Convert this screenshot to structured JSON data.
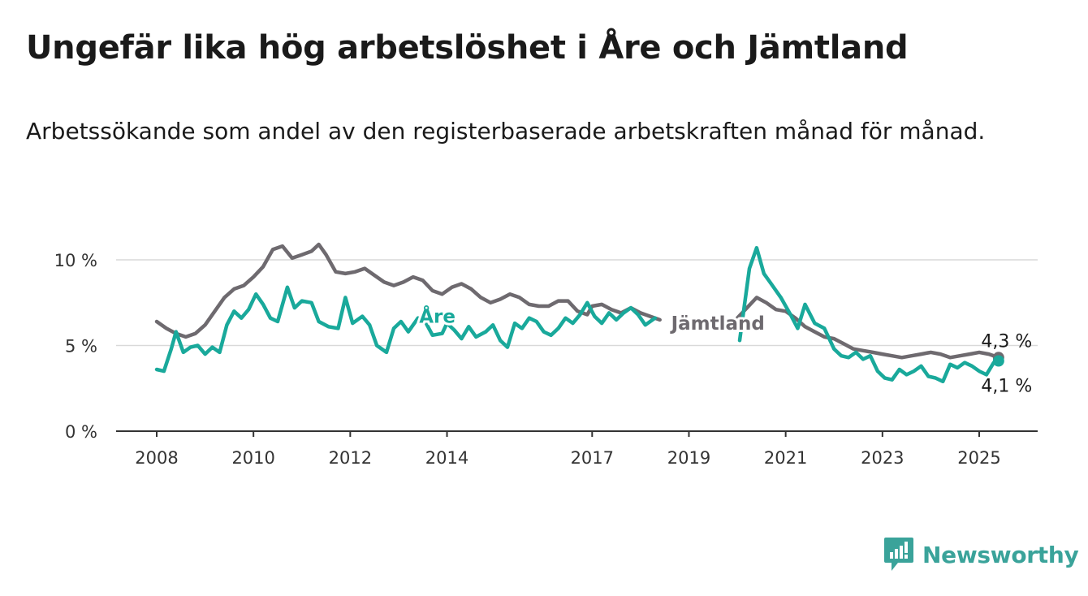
{
  "title": "Ungefär lika hög arbetslöshet i Åre och Jämtland",
  "subtitle": "Arbetssökande som andel av den registerbaserade arbetskraften månad för månad.",
  "brand": {
    "name": "Newsworthy",
    "icon": "newsworthy-logo-icon",
    "color": "#3aa39a"
  },
  "chart_data": {
    "type": "line",
    "title": "Ungefär lika hög arbetslöshet i Åre och Jämtland",
    "subtitle": "Arbetssökande som andel av den registerbaserade arbetskraften månad för månad.",
    "xlabel": "",
    "ylabel": "",
    "ylim": [
      0,
      11
    ],
    "xlim": [
      2007.8,
      2026.2
    ],
    "x_ticks": [
      2008,
      2010,
      2012,
      2014,
      2017,
      2019,
      2021,
      2023,
      2025
    ],
    "x_tick_labels": [
      "2008",
      "2010",
      "2012",
      "2014",
      "2017",
      "2019",
      "2021",
      "2023",
      "2025"
    ],
    "y_ticks": [
      0,
      5,
      10
    ],
    "y_tick_labels": [
      "0 %",
      "5 %",
      "10 %"
    ],
    "grid": "horizontal",
    "series": [
      {
        "name": "Jämtland",
        "color": "#6e6a6f",
        "end_label": "4,3 %",
        "points": [
          [
            2008.0,
            6.4
          ],
          [
            2008.2,
            6.0
          ],
          [
            2008.4,
            5.7
          ],
          [
            2008.6,
            5.5
          ],
          [
            2008.8,
            5.7
          ],
          [
            2009.0,
            6.2
          ],
          [
            2009.2,
            7.0
          ],
          [
            2009.4,
            7.8
          ],
          [
            2009.6,
            8.3
          ],
          [
            2009.8,
            8.5
          ],
          [
            2010.0,
            9.0
          ],
          [
            2010.2,
            9.6
          ],
          [
            2010.4,
            10.6
          ],
          [
            2010.6,
            10.8
          ],
          [
            2010.8,
            10.1
          ],
          [
            2011.0,
            10.3
          ],
          [
            2011.2,
            10.5
          ],
          [
            2011.35,
            10.9
          ],
          [
            2011.5,
            10.3
          ],
          [
            2011.7,
            9.3
          ],
          [
            2011.9,
            9.2
          ],
          [
            2012.1,
            9.3
          ],
          [
            2012.3,
            9.5
          ],
          [
            2012.5,
            9.1
          ],
          [
            2012.7,
            8.7
          ],
          [
            2012.9,
            8.5
          ],
          [
            2013.1,
            8.7
          ],
          [
            2013.3,
            9.0
          ],
          [
            2013.5,
            8.8
          ],
          [
            2013.7,
            8.2
          ],
          [
            2013.9,
            8.0
          ],
          [
            2014.1,
            8.4
          ],
          [
            2014.3,
            8.6
          ],
          [
            2014.5,
            8.3
          ],
          [
            2014.7,
            7.8
          ],
          [
            2014.9,
            7.5
          ],
          [
            2015.1,
            7.7
          ],
          [
            2015.3,
            8.0
          ],
          [
            2015.5,
            7.8
          ],
          [
            2015.7,
            7.4
          ],
          [
            2015.9,
            7.3
          ],
          [
            2016.1,
            7.3
          ],
          [
            2016.3,
            7.6
          ],
          [
            2016.5,
            7.6
          ],
          [
            2016.7,
            7.0
          ],
          [
            2016.9,
            6.8
          ],
          [
            2017.0,
            7.3
          ],
          [
            2017.2,
            7.4
          ],
          [
            2017.4,
            7.1
          ],
          [
            2017.6,
            6.9
          ],
          [
            2017.8,
            7.2
          ],
          [
            2018.0,
            6.9
          ],
          [
            2018.2,
            6.7
          ],
          [
            2018.4,
            6.5
          ],
          [
            2020.0,
            6.6
          ],
          [
            2020.2,
            7.2
          ],
          [
            2020.4,
            7.8
          ],
          [
            2020.6,
            7.5
          ],
          [
            2020.8,
            7.1
          ],
          [
            2021.0,
            7.0
          ],
          [
            2021.2,
            6.6
          ],
          [
            2021.4,
            6.1
          ],
          [
            2021.6,
            5.8
          ],
          [
            2021.8,
            5.5
          ],
          [
            2022.0,
            5.4
          ],
          [
            2022.2,
            5.1
          ],
          [
            2022.4,
            4.8
          ],
          [
            2022.6,
            4.7
          ],
          [
            2022.8,
            4.6
          ],
          [
            2023.0,
            4.5
          ],
          [
            2023.2,
            4.4
          ],
          [
            2023.4,
            4.3
          ],
          [
            2023.6,
            4.4
          ],
          [
            2023.8,
            4.5
          ],
          [
            2024.0,
            4.6
          ],
          [
            2024.2,
            4.5
          ],
          [
            2024.4,
            4.3
          ],
          [
            2024.6,
            4.4
          ],
          [
            2024.8,
            4.5
          ],
          [
            2025.0,
            4.6
          ],
          [
            2025.2,
            4.5
          ],
          [
            2025.4,
            4.3
          ]
        ]
      },
      {
        "name": "Åre",
        "color": "#19a99b",
        "end_label": "4,1 %",
        "points": [
          [
            2008.0,
            3.6
          ],
          [
            2008.15,
            3.5
          ],
          [
            2008.3,
            4.8
          ],
          [
            2008.4,
            5.8
          ],
          [
            2008.55,
            4.6
          ],
          [
            2008.7,
            4.9
          ],
          [
            2008.85,
            5.0
          ],
          [
            2009.0,
            4.5
          ],
          [
            2009.15,
            4.9
          ],
          [
            2009.3,
            4.6
          ],
          [
            2009.45,
            6.2
          ],
          [
            2009.6,
            7.0
          ],
          [
            2009.75,
            6.6
          ],
          [
            2009.9,
            7.1
          ],
          [
            2010.05,
            8.0
          ],
          [
            2010.2,
            7.4
          ],
          [
            2010.35,
            6.6
          ],
          [
            2010.5,
            6.4
          ],
          [
            2010.7,
            8.4
          ],
          [
            2010.85,
            7.2
          ],
          [
            2011.0,
            7.6
          ],
          [
            2011.2,
            7.5
          ],
          [
            2011.35,
            6.4
          ],
          [
            2011.55,
            6.1
          ],
          [
            2011.75,
            6.0
          ],
          [
            2011.9,
            7.8
          ],
          [
            2012.05,
            6.3
          ],
          [
            2012.25,
            6.7
          ],
          [
            2012.4,
            6.2
          ],
          [
            2012.55,
            5.0
          ],
          [
            2012.75,
            4.6
          ],
          [
            2012.9,
            6.0
          ],
          [
            2013.05,
            6.4
          ],
          [
            2013.2,
            5.8
          ],
          [
            2013.4,
            6.6
          ],
          [
            2013.55,
            6.4
          ],
          [
            2013.7,
            5.6
          ],
          [
            2013.9,
            5.7
          ],
          [
            2014.0,
            6.3
          ],
          [
            2014.15,
            5.9
          ],
          [
            2014.3,
            5.4
          ],
          [
            2014.45,
            6.1
          ],
          [
            2014.6,
            5.5
          ],
          [
            2014.8,
            5.8
          ],
          [
            2014.95,
            6.2
          ],
          [
            2015.1,
            5.3
          ],
          [
            2015.25,
            4.9
          ],
          [
            2015.4,
            6.3
          ],
          [
            2015.55,
            6.0
          ],
          [
            2015.7,
            6.6
          ],
          [
            2015.85,
            6.4
          ],
          [
            2016.0,
            5.8
          ],
          [
            2016.15,
            5.6
          ],
          [
            2016.3,
            6.0
          ],
          [
            2016.45,
            6.6
          ],
          [
            2016.6,
            6.3
          ],
          [
            2016.75,
            6.8
          ],
          [
            2016.9,
            7.5
          ],
          [
            2017.05,
            6.7
          ],
          [
            2017.2,
            6.3
          ],
          [
            2017.35,
            6.9
          ],
          [
            2017.5,
            6.5
          ],
          [
            2017.65,
            6.9
          ],
          [
            2017.8,
            7.2
          ],
          [
            2017.95,
            6.8
          ],
          [
            2018.1,
            6.2
          ],
          [
            2018.3,
            6.6
          ],
          [
            2020.05,
            5.3
          ],
          [
            2020.25,
            9.5
          ],
          [
            2020.4,
            10.7
          ],
          [
            2020.55,
            9.2
          ],
          [
            2020.7,
            8.6
          ],
          [
            2020.9,
            7.8
          ],
          [
            2021.1,
            6.8
          ],
          [
            2021.25,
            6.0
          ],
          [
            2021.4,
            7.4
          ],
          [
            2021.6,
            6.3
          ],
          [
            2021.8,
            6.0
          ],
          [
            2022.0,
            4.8
          ],
          [
            2022.15,
            4.4
          ],
          [
            2022.3,
            4.3
          ],
          [
            2022.45,
            4.6
          ],
          [
            2022.6,
            4.2
          ],
          [
            2022.75,
            4.4
          ],
          [
            2022.9,
            3.5
          ],
          [
            2023.05,
            3.1
          ],
          [
            2023.2,
            3.0
          ],
          [
            2023.35,
            3.6
          ],
          [
            2023.5,
            3.3
          ],
          [
            2023.65,
            3.5
          ],
          [
            2023.8,
            3.8
          ],
          [
            2023.95,
            3.2
          ],
          [
            2024.1,
            3.1
          ],
          [
            2024.25,
            2.9
          ],
          [
            2024.4,
            3.9
          ],
          [
            2024.55,
            3.7
          ],
          [
            2024.7,
            4.0
          ],
          [
            2024.85,
            3.8
          ],
          [
            2025.0,
            3.5
          ],
          [
            2025.15,
            3.3
          ],
          [
            2025.3,
            4.0
          ],
          [
            2025.4,
            4.1
          ]
        ]
      }
    ],
    "annotations": [
      {
        "text": "Åre",
        "series": "Åre",
        "x": 2013.8,
        "y": 6.7
      },
      {
        "text": "Jämtland",
        "series": "Jämtland",
        "x": 2019.6,
        "y": 6.3
      }
    ]
  }
}
